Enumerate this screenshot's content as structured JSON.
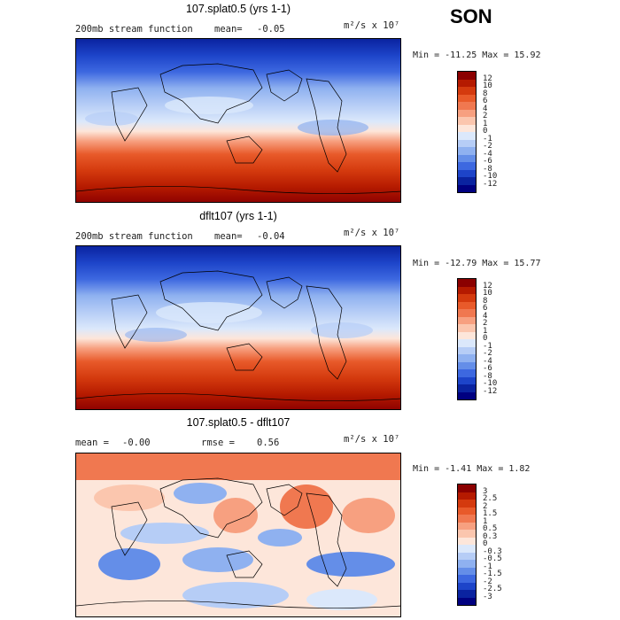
{
  "season": "SON",
  "panels": [
    {
      "title": "107.splat0.5 (yrs 1-1)",
      "subtitle": "200mb stream function",
      "stat1_label": "mean=",
      "stat1_value": "-0.05",
      "stat2_label": "",
      "stat2_value": "",
      "units": "m²/s x 10⁷",
      "minmax": "Min = -11.25 Max =  15.92",
      "min": -11.25,
      "max": 15.92
    },
    {
      "title": "dflt107 (yrs 1-1)",
      "subtitle": "200mb stream function",
      "stat1_label": "mean=",
      "stat1_value": "-0.04",
      "stat2_label": "",
      "stat2_value": "",
      "units": "m²/s x 10⁷",
      "minmax": "Min = -12.79 Max =  15.77",
      "min": -12.79,
      "max": 15.77
    },
    {
      "title": "107.splat0.5 - dflt107",
      "subtitle": "mean =",
      "stat1_label": "",
      "stat1_value": "-0.00",
      "stat2_label": "rmse =",
      "stat2_value": "0.56",
      "units": "m²/s x 10⁷",
      "minmax": "Min = -1.41 Max =  1.82",
      "min": -1.41,
      "max": 1.82
    }
  ],
  "colorbar_main": {
    "labels": [
      "12",
      "10",
      "8",
      "6",
      "4",
      "2",
      "1",
      "0",
      "-1",
      "-2",
      "-4",
      "-6",
      "-8",
      "-10",
      "-12"
    ],
    "colors": [
      "#8b0000",
      "#b51a00",
      "#d43a0e",
      "#e85a2a",
      "#f07850",
      "#f7a080",
      "#fbc6ae",
      "#fde6da",
      "#dbe8fb",
      "#b6cdf6",
      "#8fb1f0",
      "#648ee8",
      "#3d68e0",
      "#1d44c9",
      "#0a23a0",
      "#000080"
    ]
  },
  "colorbar_diff": {
    "labels": [
      "3",
      "2.5",
      "2",
      "1.5",
      "1",
      "0.5",
      "0.3",
      "0",
      "-0.3",
      "-0.5",
      "-1",
      "-1.5",
      "-2",
      "-2.5",
      "-3"
    ],
    "colors": [
      "#8b0000",
      "#b51a00",
      "#d43a0e",
      "#e85a2a",
      "#f07850",
      "#f7a080",
      "#fbc6ae",
      "#fde6da",
      "#dbe8fb",
      "#b6cdf6",
      "#8fb1f0",
      "#648ee8",
      "#3d68e0",
      "#1d44c9",
      "#0a23a0",
      "#000080"
    ]
  },
  "chart_data": [
    {
      "type": "heatmap",
      "title": "107.splat0.5 (yrs 1-1)",
      "field": "200mb stream function",
      "mean": -0.05,
      "units": "m²/s x 10⁷",
      "min": -11.25,
      "max": 15.92,
      "colorbar_levels": [
        -12,
        -10,
        -8,
        -6,
        -4,
        -2,
        -1,
        0,
        1,
        2,
        4,
        6,
        8,
        10,
        12
      ],
      "pattern": "negative (blue) in northern mid-high latitudes, positive (red) in southern mid-high latitudes"
    },
    {
      "type": "heatmap",
      "title": "dflt107 (yrs 1-1)",
      "field": "200mb stream function",
      "mean": -0.04,
      "units": "m²/s x 10⁷",
      "min": -12.79,
      "max": 15.77,
      "colorbar_levels": [
        -12,
        -10,
        -8,
        -6,
        -4,
        -2,
        -1,
        0,
        1,
        2,
        4,
        6,
        8,
        10,
        12
      ],
      "pattern": "negative (blue) in northern mid-high latitudes, positive (red) in southern mid-high latitudes"
    },
    {
      "type": "heatmap",
      "title": "107.splat0.5 - dflt107",
      "mean": -0.0,
      "rmse": 0.56,
      "units": "m²/s x 10⁷",
      "min": -1.41,
      "max": 1.82,
      "colorbar_levels": [
        -3,
        -2.5,
        -2,
        -1.5,
        -1,
        -0.5,
        -0.3,
        0,
        0.3,
        0.5,
        1,
        1.5,
        2,
        2.5,
        3
      ],
      "pattern": "positive in northern high latitudes and Atlantic, mixed negative/positive patches elsewhere"
    }
  ]
}
